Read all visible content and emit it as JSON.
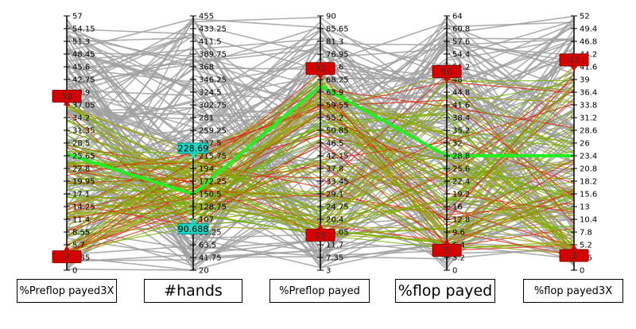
{
  "chart_data": {
    "type": "parallel-coordinates",
    "axes": [
      {
        "name": "%Preflop payed3X",
        "ticks": [
          "57",
          "54.15",
          "51.3",
          "48.45",
          "45.6",
          "42.75",
          "39.9",
          "37.05",
          "34.2",
          "31.35",
          "28.5",
          "25.65",
          "22.8",
          "19.95",
          "17.1",
          "14.25",
          "11.4",
          "8.55",
          "5.7",
          "2.85",
          "0"
        ],
        "range": [
          0,
          57
        ],
        "filter": {
          "upper": "39",
          "lower": "3"
        }
      },
      {
        "name": "#hands",
        "ticks": [
          "455",
          "433.25",
          "411.5",
          "389.75",
          "368",
          "346.25",
          "324.5",
          "302.75",
          "281",
          "259.25",
          "237.5",
          "215.75",
          "194",
          "172.25",
          "150.5",
          "128.75",
          "107",
          "85.25",
          "63.5",
          "41.75",
          "20"
        ],
        "range": [
          20,
          455
        ],
        "filter": {
          "upper": "228.69",
          "lower": "90.688"
        }
      },
      {
        "name": "%Preflop payed",
        "ticks": [
          "90",
          "85.65",
          "81.3",
          "76.95",
          "72.6",
          "68.25",
          "63.9",
          "59.55",
          "55.2",
          "50.85",
          "46.5",
          "42.15",
          "37.8",
          "33.45",
          "29.1",
          "24.75",
          "20.4",
          "16.05",
          "11.7",
          "7.35",
          "3"
        ],
        "range": [
          3,
          90
        ],
        "filter": {
          "upper": "72",
          "lower": "15"
        }
      },
      {
        "name": "%flop payed",
        "ticks": [
          "64",
          "60.8",
          "57.6",
          "54.4",
          "51.2",
          "48",
          "44.8",
          "41.6",
          "38.4",
          "35.2",
          "32",
          "28.8",
          "25.6",
          "22.4",
          "19.2",
          "16",
          "12.8",
          "9.6",
          "6.4",
          "3.2",
          "0"
        ],
        "range": [
          0,
          64
        ],
        "filter": {
          "upper": "50",
          "lower": "5"
        }
      },
      {
        "name": "%flop payed3X",
        "ticks": [
          "52",
          "49.4",
          "46.8",
          "44.2",
          "41.6",
          "39",
          "36.4",
          "33.8",
          "31.2",
          "28.6",
          "26",
          "23.4",
          "20.8",
          "18.2",
          "15.6",
          "13",
          "10.4",
          "7.8",
          "5.2",
          "2.6",
          "0"
        ],
        "range": [
          0,
          52
        ],
        "filter": {
          "upper": "43",
          "lower": "3"
        }
      }
    ],
    "highlighted_series": {
      "values": [
        26,
        150,
        66,
        28.8,
        23.4
      ]
    },
    "colors": {
      "context_lines": "#a0a0a0",
      "selected_lines": [
        "#dd2a12",
        "#9aa000",
        "#6db000"
      ],
      "highlight_line": "#22ee22",
      "axis_handle_red": "#d40000",
      "axis_handle_cyan": "#22d6c6"
    }
  }
}
